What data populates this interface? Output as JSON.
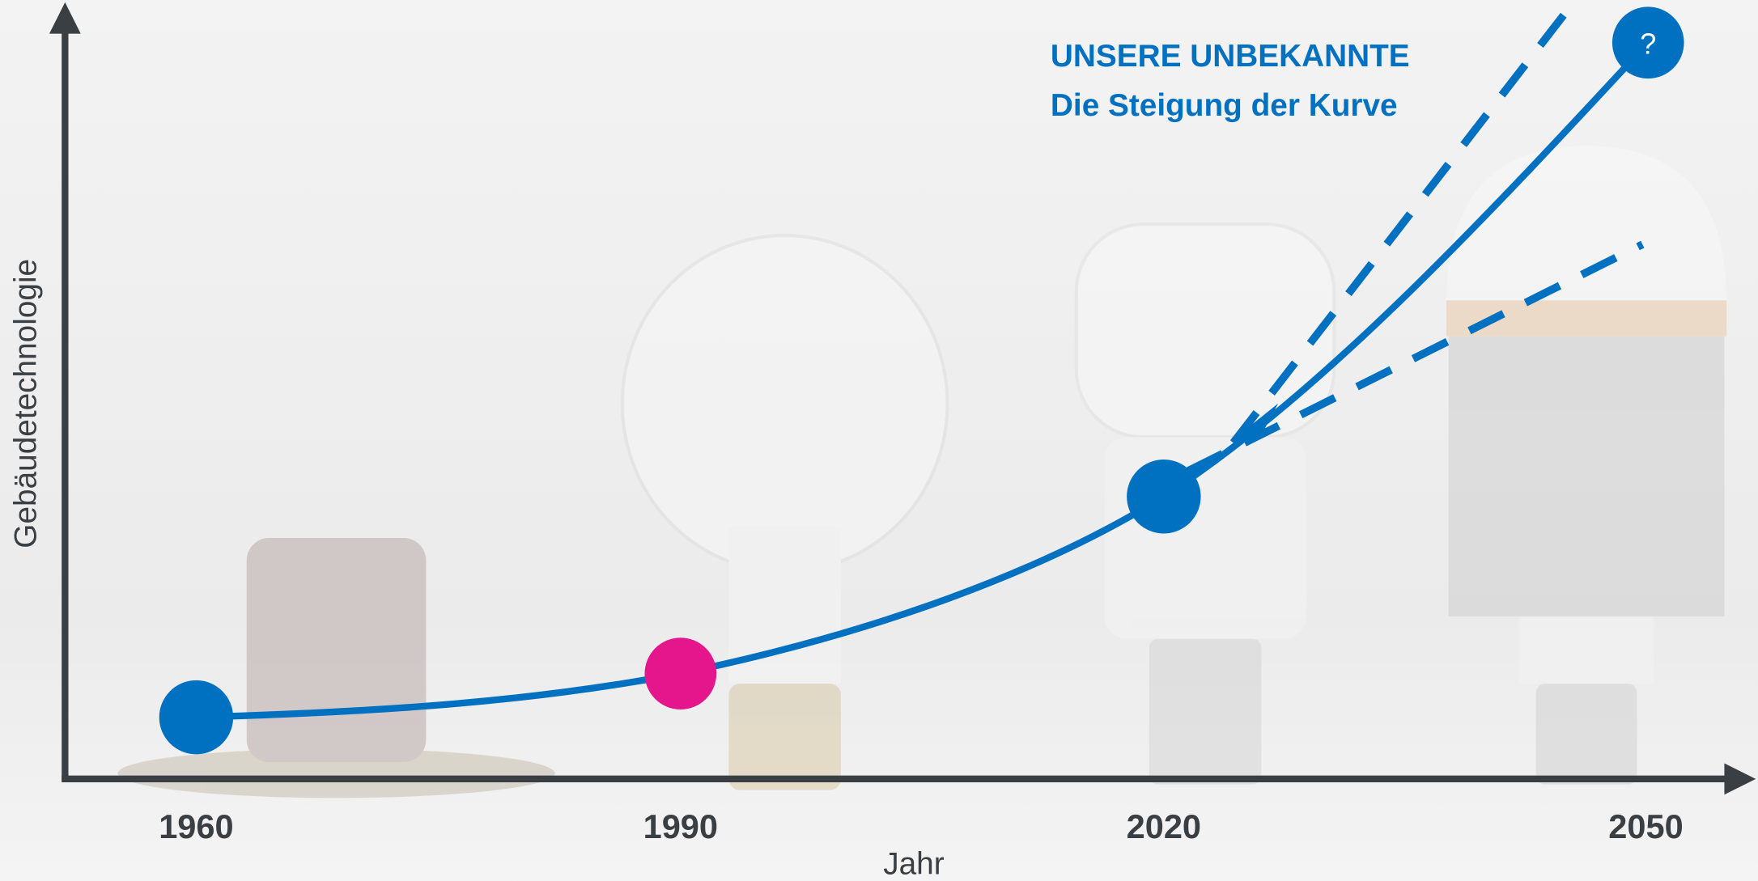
{
  "y_axis_label": "Gebäudetechnologie",
  "x_axis_label": "Jahr",
  "x_labels": [
    "1960",
    "1990",
    "2020",
    "2050"
  ],
  "annotation": {
    "title": "UNSERE UNBEKANNTE",
    "subtitle": "Die Steigung der Kurve"
  },
  "future_marker": "?"
}
